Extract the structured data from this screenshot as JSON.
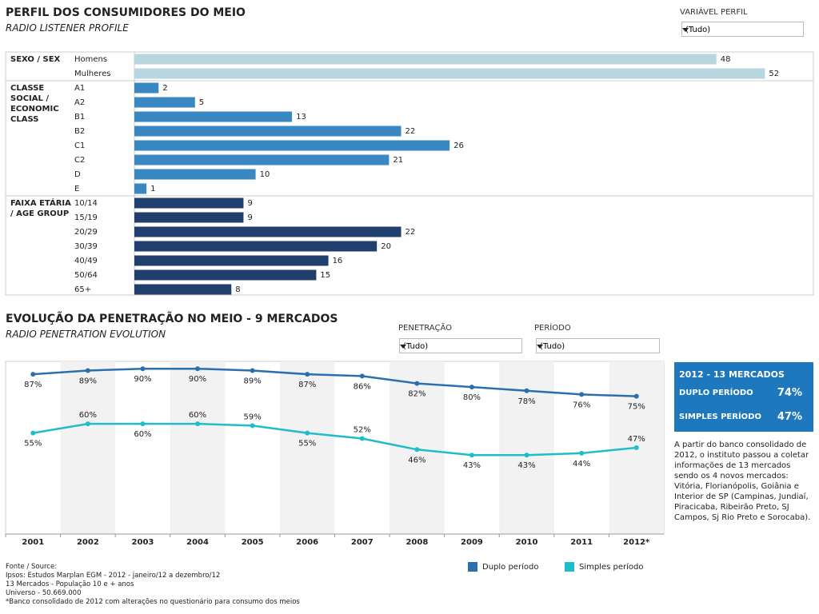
{
  "chart_data": [
    {
      "type": "hbar",
      "title": "PERFIL DOS CONSUMIDORES DO MEIO",
      "subtitle": "RADIO LISTENER PROFILE",
      "xlim": [
        0,
        56
      ],
      "groups": [
        {
          "name": "SEXO / SEX",
          "color": "#b7d6dd",
          "categories": [
            "Homens",
            "Mulheres"
          ],
          "values": [
            48,
            52
          ]
        },
        {
          "name": "CLASSE SOCIAL / ECONOMIC CLASS",
          "color": "#3a88c1",
          "categories": [
            "A1",
            "A2",
            "B1",
            "B2",
            "C1",
            "C2",
            "D",
            "E"
          ],
          "values": [
            2,
            5,
            13,
            22,
            26,
            21,
            10,
            1
          ]
        },
        {
          "name": "FAIXA ETÁRIA / AGE GROUP",
          "color": "#213f6d",
          "categories": [
            "10/14",
            "15/19",
            "20/29",
            "30/39",
            "40/49",
            "50/64",
            "65+"
          ],
          "values": [
            9,
            9,
            22,
            20,
            16,
            15,
            8
          ]
        }
      ]
    },
    {
      "type": "line",
      "title": "EVOLUÇÃO DA PENETRAÇÃO NO MEIO - 9 MERCADOS",
      "subtitle": "RADIO PENETRATION EVOLUTION",
      "categories": [
        "2001",
        "2002",
        "2003",
        "2004",
        "2005",
        "2006",
        "2007",
        "2008",
        "2009",
        "2010",
        "2011",
        "2012*"
      ],
      "ylim": [
        0,
        94
      ],
      "shaded_bands": true,
      "series": [
        {
          "name": "Duplo período",
          "color": "#2b6fae",
          "values": [
            87,
            89,
            90,
            90,
            89,
            87,
            86,
            82,
            80,
            78,
            76,
            75
          ],
          "value_labels": [
            "87%",
            "89%",
            "90%",
            "90%",
            "89%",
            "87%",
            "86%",
            "82%",
            "80%",
            "78%",
            "76%",
            "75%"
          ]
        },
        {
          "name": "Simples período",
          "color": "#1fbdcc",
          "values": [
            55,
            60,
            60,
            60,
            59,
            55,
            52,
            46,
            43,
            43,
            44,
            47
          ],
          "value_labels": [
            "55%",
            "60%",
            "60%",
            "60%",
            "59%",
            "55%",
            "52%",
            "46%",
            "43%",
            "43%",
            "44%",
            "47%"
          ]
        }
      ]
    }
  ],
  "filters": [
    {
      "label": "VARIÁVEL PERFIL",
      "value": "(Tudo)"
    },
    {
      "label": "PENETRAÇÃO",
      "value": "(Tudo)"
    },
    {
      "label": "PERÍODO",
      "value": "(Tudo)"
    }
  ],
  "info_box": {
    "title": "2012 - 13 MERCADOS",
    "rows": [
      {
        "label": "DUPLO PERÍODO",
        "value": "74%"
      },
      {
        "label": "SIMPLES PERÍODO",
        "value": "47%"
      }
    ],
    "note": "A partir do banco consolidado de 2012, o instituto passou a coletar informações de 13 mercados sendo os 4 novos mercados: Vitória, Florianópolis, Goiânia e Interior de SP (Campinas, Jundiaí, Piracicaba, Ribeirão Preto, SJ Campos, Sj Rio Preto e Sorocaba)."
  },
  "source": [
    "Fonte / Source:",
    "Ipsos: Estudos Marplan EGM - 2012 - janeiro/12 a dezembro/12",
    "13 Mercados - População 10 e + anos",
    "Universo - 50.669.000",
    "*Banco consolidado de 2012 com alterações no questionário para consumo dos meios"
  ]
}
